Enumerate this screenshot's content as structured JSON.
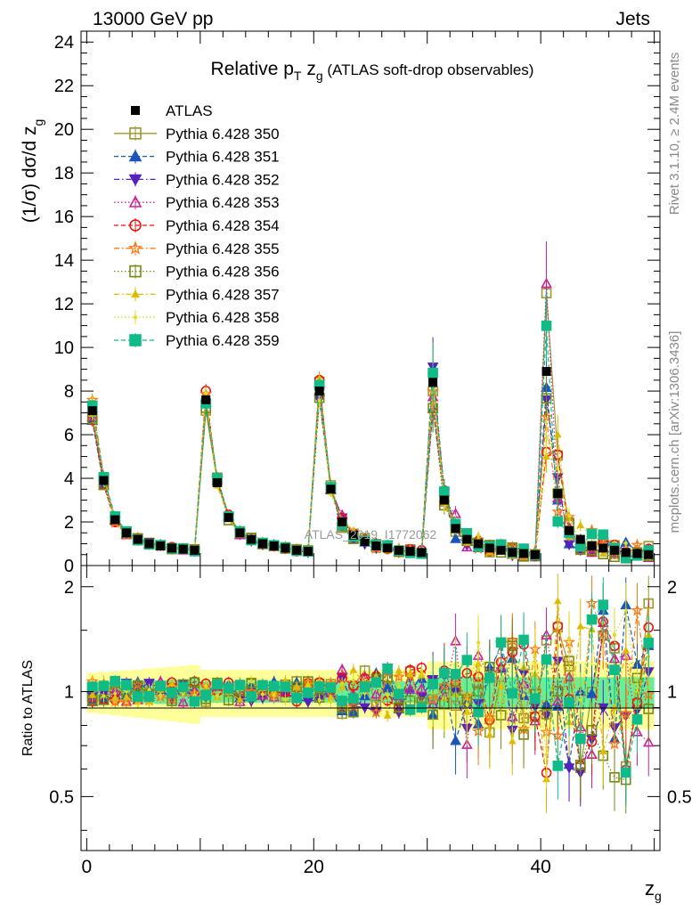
{
  "header": {
    "left": "13000 GeV pp",
    "right": "Jets"
  },
  "side_labels": {
    "top": "Rivet 3.1.10, ≥ 2.4M events",
    "bottom": "mcplots.cern.ch [arXiv:1306.3436]"
  },
  "watermark": "ATLAS_2019_I1772062",
  "chart_data": {
    "type": "line",
    "title": {
      "prefix": "Relative p",
      "sub1": "T",
      "mid": " z",
      "sub2": "g",
      "suffix": " (ATLAS soft-drop observables)"
    },
    "xlabel": {
      "main": "z",
      "sub": "g"
    },
    "ylabel": {
      "text": "(1/σ) dσ/d z",
      "sub": "g"
    },
    "ratio_ylabel": "Ratio to ATLAS",
    "xlim": [
      -0.5,
      50.5
    ],
    "ylim": [
      0,
      24.5
    ],
    "ratio_ylim": [
      0.35,
      2.3
    ],
    "x_ticks": [
      "0",
      "20",
      "40"
    ],
    "x_tick_values": [
      0,
      20,
      40
    ],
    "y_ticks": [
      "0",
      "2",
      "4",
      "6",
      "8",
      "10",
      "12",
      "14",
      "16",
      "18",
      "20",
      "22",
      "24"
    ],
    "y_tick_values": [
      0,
      2,
      4,
      6,
      8,
      10,
      12,
      14,
      16,
      18,
      20,
      22,
      24
    ],
    "ratio_ticks": [
      "0.5",
      "1",
      "2"
    ],
    "ratio_tick_values": [
      0.5,
      1,
      2
    ],
    "x": [
      0.5,
      1.5,
      2.5,
      3.5,
      4.5,
      5.5,
      6.5,
      7.5,
      8.5,
      9.5,
      10.5,
      11.5,
      12.5,
      13.5,
      14.5,
      15.5,
      16.5,
      17.5,
      18.5,
      19.5,
      20.5,
      21.5,
      22.5,
      23.5,
      24.5,
      25.5,
      26.5,
      27.5,
      28.5,
      29.5,
      30.5,
      31.5,
      32.5,
      33.5,
      34.5,
      35.5,
      36.5,
      37.5,
      38.5,
      39.5,
      40.5,
      41.5,
      42.5,
      43.5,
      44.5,
      45.5,
      46.5,
      47.5,
      48.5,
      49.5
    ],
    "data": {
      "name": "ATLAS",
      "values": [
        7.1,
        3.9,
        2.1,
        1.5,
        1.2,
        1.0,
        0.9,
        0.8,
        0.75,
        0.7,
        7.6,
        3.8,
        2.2,
        1.5,
        1.2,
        1.0,
        0.9,
        0.8,
        0.7,
        0.65,
        8.0,
        3.5,
        2.0,
        1.4,
        1.1,
        0.9,
        0.8,
        0.7,
        0.65,
        0.6,
        8.4,
        3.0,
        1.7,
        1.2,
        1.0,
        0.8,
        0.7,
        0.6,
        0.55,
        0.5,
        8.9,
        3.3,
        1.6,
        1.2,
        0.9,
        0.8,
        0.7,
        0.6,
        0.55,
        0.5
      ],
      "color": "#000000"
    },
    "bands": {
      "outer_color": "#ffff99",
      "inner_color": "#66ee99"
    },
    "series": [
      {
        "name": "Pythia 6.428 350",
        "color": "#9a9a2a",
        "marker": "square-open",
        "dash": "solid"
      },
      {
        "name": "Pythia 6.428 351",
        "color": "#1a55bb",
        "marker": "triangle-up",
        "dash": "dashed"
      },
      {
        "name": "Pythia 6.428 352",
        "color": "#5522bb",
        "marker": "triangle-down",
        "dash": "dashdot"
      },
      {
        "name": "Pythia 6.428 353",
        "color": "#cc2299",
        "marker": "triangle-up-open",
        "dash": "dotted"
      },
      {
        "name": "Pythia 6.428 354",
        "color": "#ee1111",
        "marker": "circle-open",
        "dash": "dashed"
      },
      {
        "name": "Pythia 6.428 355",
        "color": "#ff7711",
        "marker": "star-open",
        "dash": "dashdot"
      },
      {
        "name": "Pythia 6.428 356",
        "color": "#778811",
        "marker": "square-open",
        "dash": "dotted"
      },
      {
        "name": "Pythia 6.428 357",
        "color": "#ddbb00",
        "marker": "tri-small",
        "dash": "dashdot"
      },
      {
        "name": "Pythia 6.428 358",
        "color": "#dddd22",
        "marker": "dot-small",
        "dash": "dotted"
      },
      {
        "name": "Pythia 6.428 359",
        "color": "#11bb88",
        "marker": "square",
        "dash": "dashed"
      }
    ]
  }
}
